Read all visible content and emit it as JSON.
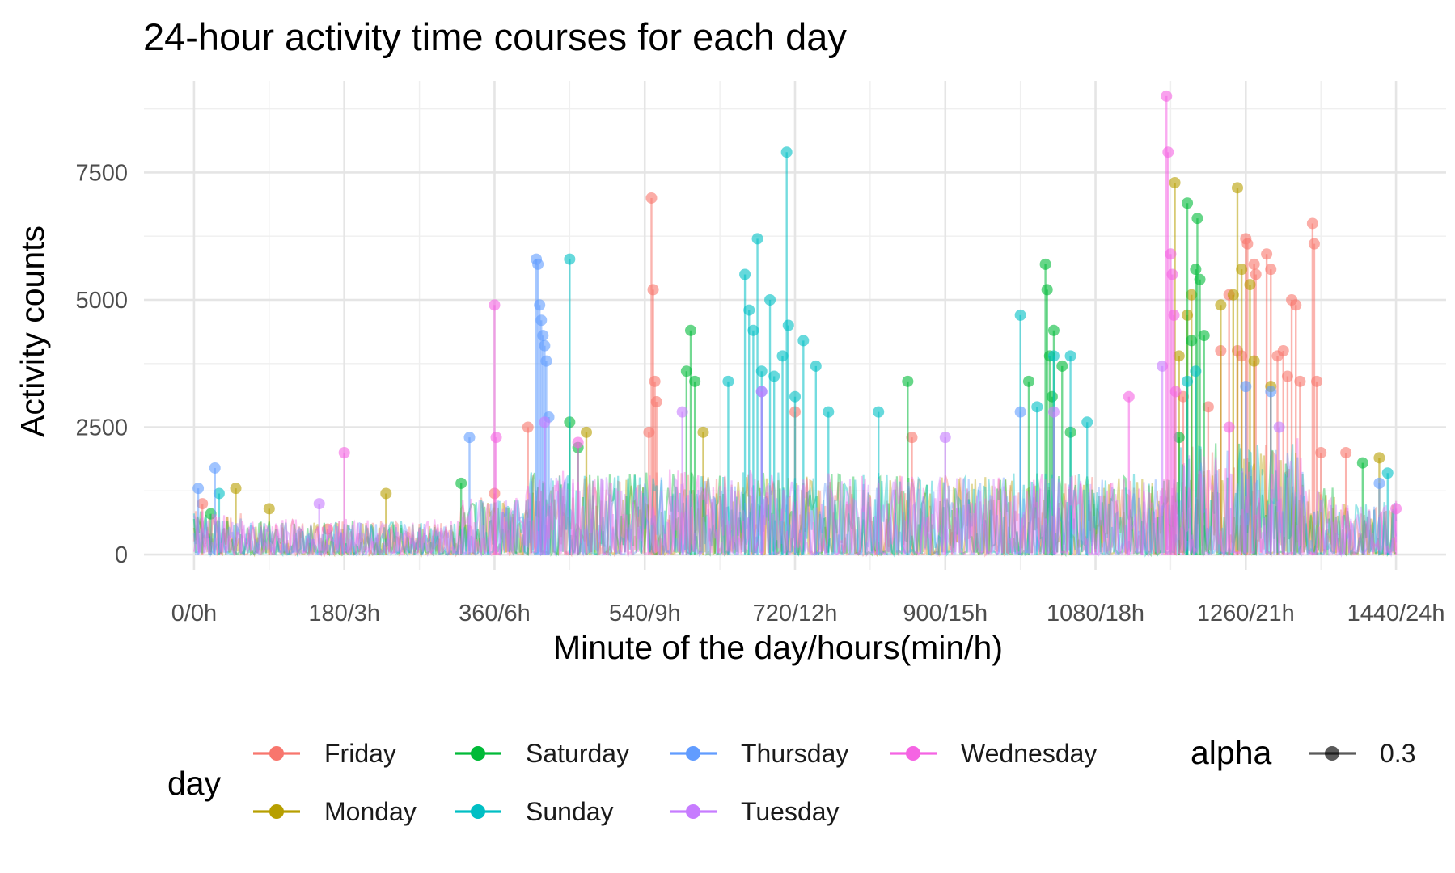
{
  "chart_data": {
    "type": "line",
    "title": "24-hour activity time courses for each day",
    "xlabel": "Minute of the day/hours(min/h)",
    "ylabel": "Activity counts",
    "xlim": [
      -60,
      1500
    ],
    "ylim": [
      -300,
      9300
    ],
    "x_ticks": [
      {
        "value": 0,
        "label": "0/0h"
      },
      {
        "value": 180,
        "label": "180/3h"
      },
      {
        "value": 360,
        "label": "360/6h"
      },
      {
        "value": 540,
        "label": "540/9h"
      },
      {
        "value": 720,
        "label": "720/12h"
      },
      {
        "value": 900,
        "label": "900/15h"
      },
      {
        "value": 1080,
        "label": "1080/18h"
      },
      {
        "value": 1260,
        "label": "1260/21h"
      },
      {
        "value": 1440,
        "label": "1440/24h"
      }
    ],
    "y_ticks": [
      {
        "value": 0,
        "label": "0"
      },
      {
        "value": 2500,
        "label": "2500"
      },
      {
        "value": 5000,
        "label": "5000"
      },
      {
        "value": 7500,
        "label": "7500"
      }
    ],
    "grid": true,
    "point_alpha": 0.3,
    "legend": {
      "position": "bottom",
      "color_title": "day",
      "alpha_title": "alpha",
      "alpha_value": "0.3"
    },
    "series": [
      {
        "name": "Friday",
        "color": "#F8766D",
        "peaks": [
          [
            10,
            1000
          ],
          [
            160,
            500
          ],
          [
            360,
            1200
          ],
          [
            400,
            2500
          ],
          [
            548,
            7000
          ],
          [
            550,
            5200
          ],
          [
            552,
            3400
          ],
          [
            554,
            3000
          ],
          [
            545,
            2400
          ],
          [
            860,
            2300
          ],
          [
            1185,
            3100
          ],
          [
            1215,
            2900
          ],
          [
            1230,
            4000
          ],
          [
            1240,
            5100
          ],
          [
            1250,
            4000
          ],
          [
            1255,
            3900
          ],
          [
            1260,
            6200
          ],
          [
            1262,
            6100
          ],
          [
            1270,
            5700
          ],
          [
            1272,
            5500
          ],
          [
            1285,
            5900
          ],
          [
            1290,
            5600
          ],
          [
            1298,
            3900
          ],
          [
            1305,
            4000
          ],
          [
            1310,
            3500
          ],
          [
            1315,
            5000
          ],
          [
            1320,
            4900
          ],
          [
            1325,
            3400
          ],
          [
            1340,
            6500
          ],
          [
            1342,
            6100
          ],
          [
            1345,
            3400
          ],
          [
            1350,
            2000
          ],
          [
            1380,
            2000
          ],
          [
            720,
            2800
          ]
        ],
        "baseline": 950
      },
      {
        "name": "Monday",
        "color": "#B79F00",
        "peaks": [
          [
            50,
            1300
          ],
          [
            90,
            900
          ],
          [
            230,
            1200
          ],
          [
            470,
            2400
          ],
          [
            610,
            2400
          ],
          [
            1175,
            7300
          ],
          [
            1180,
            3900
          ],
          [
            1190,
            4700
          ],
          [
            1195,
            5100
          ],
          [
            1230,
            4900
          ],
          [
            1245,
            5100
          ],
          [
            1250,
            7200
          ],
          [
            1255,
            5600
          ],
          [
            1265,
            5300
          ],
          [
            1270,
            3800
          ],
          [
            1290,
            3300
          ],
          [
            1420,
            1900
          ]
        ],
        "baseline": 900
      },
      {
        "name": "Saturday",
        "color": "#00BA38",
        "peaks": [
          [
            20,
            800
          ],
          [
            320,
            1400
          ],
          [
            450,
            2600
          ],
          [
            460,
            2100
          ],
          [
            590,
            3600
          ],
          [
            595,
            4400
          ],
          [
            600,
            3400
          ],
          [
            855,
            3400
          ],
          [
            1000,
            3400
          ],
          [
            1020,
            5700
          ],
          [
            1022,
            5200
          ],
          [
            1025,
            3900
          ],
          [
            1028,
            3100
          ],
          [
            1030,
            4400
          ],
          [
            1040,
            3700
          ],
          [
            1050,
            2400
          ],
          [
            1180,
            2300
          ],
          [
            1190,
            6900
          ],
          [
            1195,
            4200
          ],
          [
            1200,
            5600
          ],
          [
            1202,
            6600
          ],
          [
            1205,
            5400
          ],
          [
            1210,
            4300
          ],
          [
            1400,
            1800
          ]
        ],
        "baseline": 950
      },
      {
        "name": "Sunday",
        "color": "#00BFC4",
        "peaks": [
          [
            30,
            1200
          ],
          [
            450,
            5800
          ],
          [
            640,
            3400
          ],
          [
            660,
            5500
          ],
          [
            665,
            4800
          ],
          [
            670,
            4400
          ],
          [
            675,
            6200
          ],
          [
            680,
            3600
          ],
          [
            690,
            5000
          ],
          [
            695,
            3500
          ],
          [
            705,
            3900
          ],
          [
            710,
            7900
          ],
          [
            712,
            4500
          ],
          [
            720,
            3100
          ],
          [
            730,
            4200
          ],
          [
            745,
            3700
          ],
          [
            760,
            2800
          ],
          [
            820,
            2800
          ],
          [
            990,
            4700
          ],
          [
            1010,
            2900
          ],
          [
            1030,
            3900
          ],
          [
            1050,
            3900
          ],
          [
            1070,
            2600
          ],
          [
            1190,
            3400
          ],
          [
            1200,
            3600
          ],
          [
            1430,
            1600
          ]
        ],
        "baseline": 950
      },
      {
        "name": "Thursday",
        "color": "#619CFF",
        "peaks": [
          [
            5,
            1300
          ],
          [
            25,
            1700
          ],
          [
            330,
            2300
          ],
          [
            410,
            5800
          ],
          [
            412,
            5700
          ],
          [
            414,
            4900
          ],
          [
            416,
            4600
          ],
          [
            418,
            4300
          ],
          [
            420,
            4100
          ],
          [
            422,
            3800
          ],
          [
            425,
            2700
          ],
          [
            680,
            3200
          ],
          [
            990,
            2800
          ],
          [
            1260,
            3300
          ],
          [
            1290,
            3200
          ],
          [
            1420,
            1400
          ]
        ],
        "baseline": 900
      },
      {
        "name": "Tuesday",
        "color": "#C77CFF",
        "peaks": [
          [
            150,
            1000
          ],
          [
            420,
            2600
          ],
          [
            585,
            2800
          ],
          [
            680,
            3200
          ],
          [
            900,
            2300
          ],
          [
            1030,
            2800
          ],
          [
            1160,
            3700
          ],
          [
            1300,
            2500
          ]
        ],
        "baseline": 900
      },
      {
        "name": "Wednesday",
        "color": "#F564E3",
        "peaks": [
          [
            180,
            2000
          ],
          [
            360,
            4900
          ],
          [
            362,
            2300
          ],
          [
            460,
            2200
          ],
          [
            1165,
            9000
          ],
          [
            1167,
            7900
          ],
          [
            1170,
            5900
          ],
          [
            1172,
            5500
          ],
          [
            1174,
            4700
          ],
          [
            1176,
            3200
          ],
          [
            1120,
            3100
          ],
          [
            1240,
            2500
          ],
          [
            1440,
            900
          ]
        ],
        "baseline": 1000
      }
    ]
  }
}
